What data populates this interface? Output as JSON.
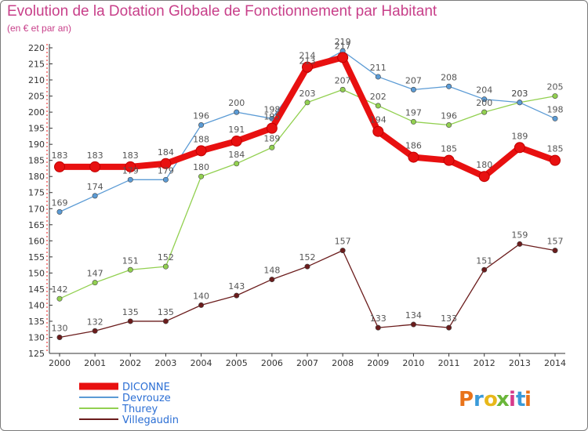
{
  "header": {
    "title": "Evolution de la Dotation Globale de Fonctionnement par Habitant",
    "subtitle": "(en € et par an)"
  },
  "logo": {
    "text": "Proxiti",
    "letters": [
      "P",
      "r",
      "o",
      "x",
      "i",
      "t",
      "i"
    ],
    "colors": [
      "#e8731a",
      "#3a9ad9",
      "#e8b81a",
      "#6ab63a",
      "#d63a8a",
      "#3a9ad9",
      "#e8731a"
    ]
  },
  "chart_data": {
    "type": "line",
    "title": "Evolution de la Dotation Globale de Fonctionnement par Habitant",
    "subtitle": "(en € et par an)",
    "xlabel": "",
    "ylabel": "",
    "x": [
      2000,
      2001,
      2002,
      2003,
      2004,
      2005,
      2006,
      2007,
      2008,
      2009,
      2010,
      2011,
      2012,
      2013,
      2014
    ],
    "ylim": [
      125,
      220
    ],
    "yticks": [
      125,
      130,
      135,
      140,
      145,
      150,
      155,
      160,
      165,
      170,
      175,
      180,
      185,
      190,
      195,
      200,
      205,
      210,
      215,
      220
    ],
    "grid": false,
    "legend_position": "bottom-left",
    "series": [
      {
        "name": "DICONNE",
        "color": "#e81010",
        "values": [
          183,
          183,
          183,
          184,
          188,
          191,
          195,
          214,
          217,
          194,
          186,
          185,
          180,
          189,
          185
        ]
      },
      {
        "name": "Devrouze",
        "color": "#5b9bd5",
        "values": [
          169,
          174,
          179,
          179,
          196,
          200,
          198,
          213,
          219,
          211,
          207,
          208,
          204,
          203,
          198
        ]
      },
      {
        "name": "Thurey",
        "color": "#92d050",
        "values": [
          142,
          147,
          151,
          152,
          180,
          184,
          189,
          203,
          207,
          202,
          197,
          196,
          200,
          203,
          205
        ]
      },
      {
        "name": "Villegaudin",
        "color": "#6b1c1c",
        "values": [
          130,
          132,
          135,
          135,
          140,
          143,
          148,
          152,
          157,
          133,
          134,
          133,
          151,
          159,
          157
        ]
      }
    ]
  }
}
